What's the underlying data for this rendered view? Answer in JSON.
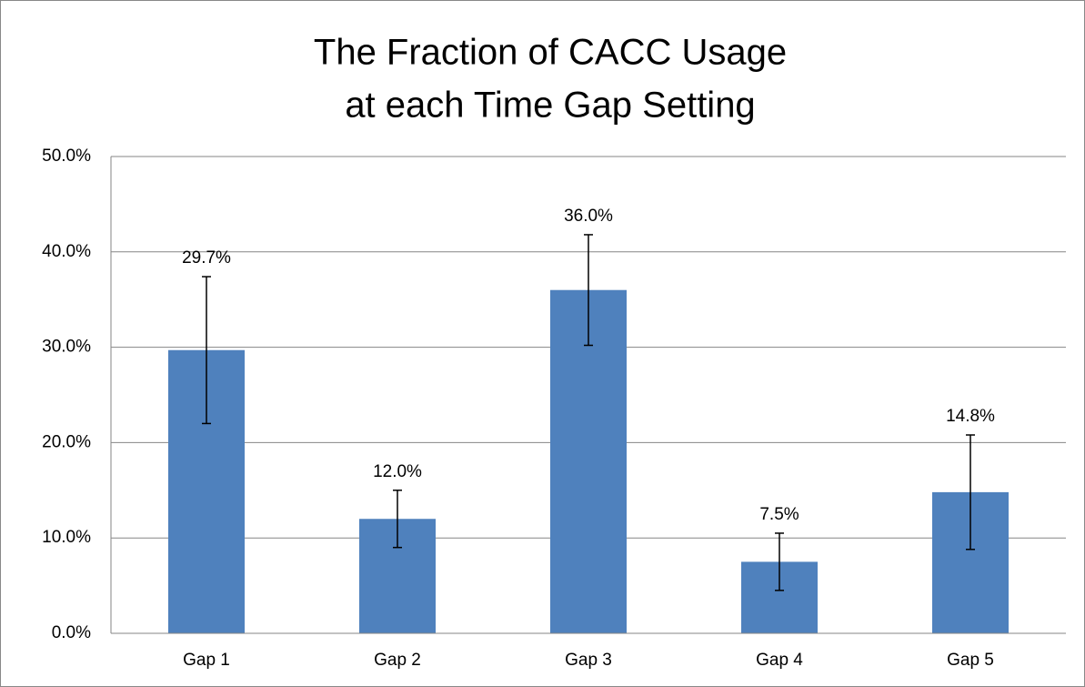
{
  "chart_data": {
    "type": "bar",
    "title": [
      "The Fraction of CACC Usage",
      "at each Time Gap Setting"
    ],
    "categories": [
      "Gap 1",
      "Gap 2",
      "Gap 3",
      "Gap 4",
      "Gap 5"
    ],
    "values": [
      29.7,
      12.0,
      36.0,
      7.5,
      14.8
    ],
    "value_labels": [
      "29.7%",
      "12.0%",
      "36.0%",
      "7.5%",
      "14.8%"
    ],
    "errors": [
      7.7,
      3.0,
      5.8,
      3.0,
      6.0
    ],
    "color": "#4f81bd",
    "ylim": [
      0,
      50
    ],
    "yticks": [
      {
        "value": 0,
        "label": "0.0%"
      },
      {
        "value": 10,
        "label": "10.0%"
      },
      {
        "value": 20,
        "label": "20.0%"
      },
      {
        "value": 30,
        "label": "30.0%"
      },
      {
        "value": 40,
        "label": "40.0%"
      },
      {
        "value": 50,
        "label": "50.0%"
      }
    ],
    "grid": true
  }
}
